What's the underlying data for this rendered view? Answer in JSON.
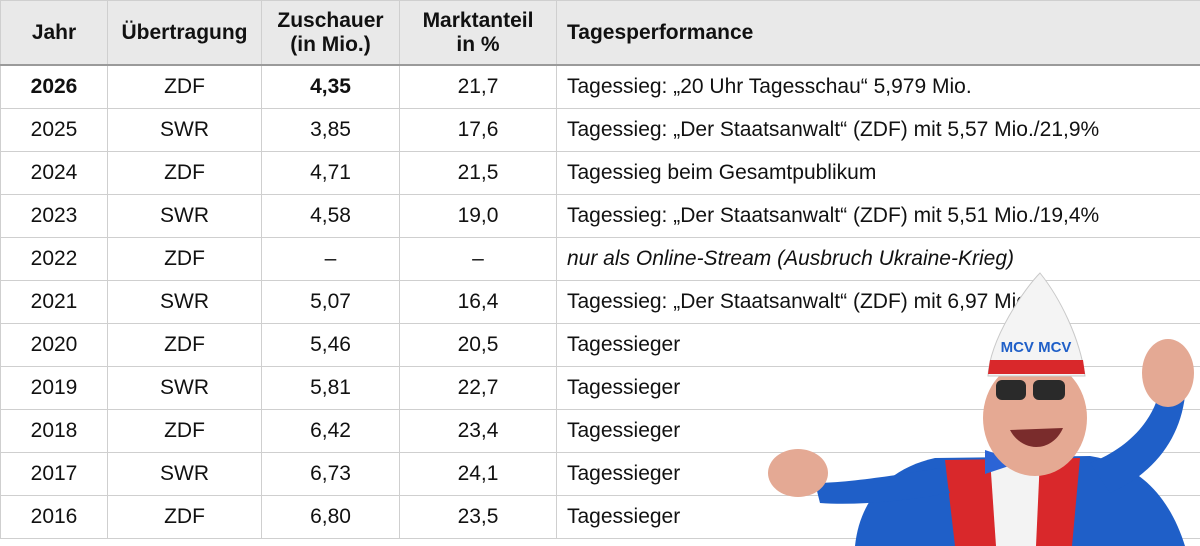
{
  "table": {
    "headers": {
      "year": "Jahr",
      "broadcast": "Übertragung",
      "viewers_line1": "Zuschauer",
      "viewers_line2": "(in Mio.)",
      "share_line1": "Marktanteil",
      "share_line2": "in %",
      "performance": "Tagesperformance"
    },
    "rows": [
      {
        "year": "2026",
        "broadcast": "ZDF",
        "viewers": "4,35",
        "share": "21,7",
        "performance": "Tagessieg: „20 Uhr Tagesschau“ 5,979 Mio."
      },
      {
        "year": "2025",
        "broadcast": "SWR",
        "viewers": "3,85",
        "share": "17,6",
        "performance": "Tagessieg: „Der Staatsanwalt“ (ZDF) mit 5,57 Mio./21,9%"
      },
      {
        "year": "2024",
        "broadcast": "ZDF",
        "viewers": "4,71",
        "share": "21,5",
        "performance": "Tagessieg beim Gesamtpublikum"
      },
      {
        "year": "2023",
        "broadcast": "SWR",
        "viewers": "4,58",
        "share": "19,0",
        "performance": "Tagessieg: „Der Staatsanwalt“ (ZDF) mit 5,51 Mio./19,4%"
      },
      {
        "year": "2022",
        "broadcast": "ZDF",
        "viewers": "–",
        "share": "–",
        "performance": "nur als Online-Stream (Ausbruch Ukraine-Krieg)"
      },
      {
        "year": "2021",
        "broadcast": "SWR",
        "viewers": "5,07",
        "share": "16,4",
        "performance": "Tagessieg: „Der Staatsanwalt“ (ZDF) mit 6,97 Mio."
      },
      {
        "year": "2020",
        "broadcast": "ZDF",
        "viewers": "5,46",
        "share": "20,5",
        "performance": "Tagessieger"
      },
      {
        "year": "2019",
        "broadcast": "SWR",
        "viewers": "5,81",
        "share": "22,7",
        "performance": "Tagessieger"
      },
      {
        "year": "2018",
        "broadcast": "ZDF",
        "viewers": "6,42",
        "share": "23,4",
        "performance": "Tagessieger"
      },
      {
        "year": "2017",
        "broadcast": "SWR",
        "viewers": "6,73",
        "share": "24,1",
        "performance": "Tagessieger"
      },
      {
        "year": "2016",
        "broadcast": "ZDF",
        "viewers": "6,80",
        "share": "23,5",
        "performance": "Tagessieger"
      }
    ]
  },
  "overlay": {
    "cap_text": "MCV MCV"
  },
  "colors": {
    "header_bg": "#e9e9e9",
    "grid": "#cfcfcf",
    "jacket_blue": "#1f5fc8",
    "vest_red": "#d9282b",
    "cap_white": "#f4f4f4"
  }
}
